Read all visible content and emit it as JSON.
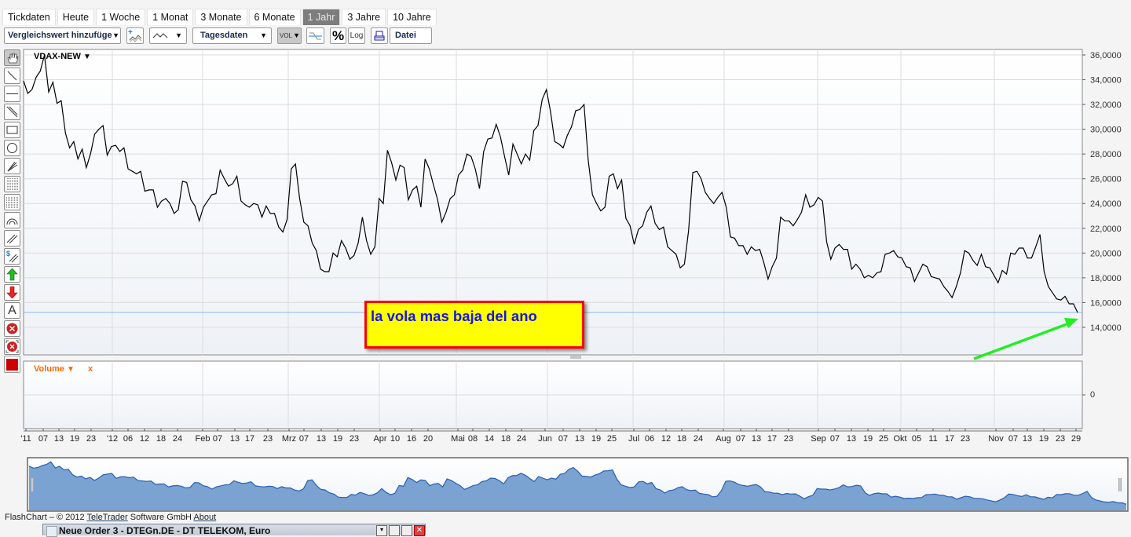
{
  "tabs": [
    {
      "label": "Tickdaten",
      "active": false
    },
    {
      "label": "Heute",
      "active": false
    },
    {
      "label": "1 Woche",
      "active": false
    },
    {
      "label": "1 Monat",
      "active": false
    },
    {
      "label": "3 Monate",
      "active": false
    },
    {
      "label": "6 Monate",
      "active": false
    },
    {
      "label": "1 Jahr",
      "active": true
    },
    {
      "label": "3 Jahre",
      "active": false
    },
    {
      "label": "10 Jahre",
      "active": false
    }
  ],
  "toolbar": {
    "compare_dropdown": "Vergleichswert hinzufüge",
    "add_indicator_icon": "chart-plus-icon",
    "chart_type_icon": "line-chart-icon",
    "interval_dropdown": "Tagesdaten",
    "volume_toggle": "VOL",
    "indicator_icon": "wave-icon",
    "percent_label": "%",
    "log_label": "Log",
    "print_icon": "print-icon",
    "file_label": "Datei"
  },
  "drawing_tools": [
    "hand-icon",
    "line-icon",
    "horizontal-line-icon",
    "parallel-lines-icon",
    "rectangle-icon",
    "circle-icon",
    "fan-icon",
    "vertical-grid-icon",
    "horizontal-grid-icon",
    "arc-icon",
    "channel-icon",
    "dollar-channel-icon",
    "arrow-up-icon",
    "arrow-down-icon",
    "text-icon",
    "delete-icon",
    "delete-all-icon",
    "color-picker-icon"
  ],
  "drawing_text_label": "A",
  "drawing_color": "#cc0000",
  "chart": {
    "instrument": "VDAX-NEW",
    "line_color": "#000000",
    "ref_line_color": "#8fb8e0",
    "annotation": {
      "text": "la vola mas baja del ano",
      "bg": "#ffff00",
      "border": "#ff0000",
      "text_color": "#1515e6"
    },
    "arrow_color": "#22ee22"
  },
  "chart_data": {
    "type": "line",
    "series": [
      {
        "name": "VDAX-NEW",
        "values": [
          33.9,
          32.9,
          33.2,
          34.2,
          34.7,
          36.0,
          33.0,
          33.8,
          32.1,
          32.3,
          29.7,
          28.5,
          29.0,
          27.6,
          28.4,
          26.9,
          28.0,
          29.6,
          30.0,
          30.3,
          27.9,
          28.6,
          28.7,
          28.2,
          28.5,
          26.8,
          26.6,
          26.4,
          26.6,
          25.0,
          25.1,
          25.1,
          23.7,
          24.2,
          24.4,
          24.0,
          23.2,
          23.5,
          25.8,
          25.7,
          24.3,
          23.8,
          22.6,
          23.7,
          24.2,
          24.7,
          24.8,
          26.7,
          26.0,
          25.4,
          25.6,
          26.2,
          24.2,
          23.9,
          23.7,
          24.0,
          23.9,
          22.9,
          23.8,
          23.2,
          23.2,
          22.1,
          21.7,
          22.7,
          26.8,
          27.2,
          24.4,
          22.5,
          22.2,
          20.8,
          20.2,
          18.7,
          18.5,
          18.5,
          20.0,
          19.7,
          21.0,
          20.4,
          19.5,
          19.8,
          20.8,
          22.9,
          21.0,
          19.9,
          20.5,
          24.4,
          24.0,
          28.3,
          27.3,
          25.9,
          27.1,
          26.9,
          24.3,
          25.1,
          25.4,
          23.7,
          27.6,
          26.8,
          25.5,
          24.3,
          22.5,
          23.3,
          24.4,
          24.7,
          26.3,
          26.7,
          28.0,
          27.8,
          26.8,
          25.2,
          28.2,
          29.2,
          29.3,
          30.4,
          29.4,
          27.8,
          26.3,
          28.8,
          28.0,
          27.2,
          28.0,
          27.5,
          29.9,
          30.3,
          32.4,
          33.2,
          31.4,
          29.0,
          28.8,
          28.5,
          29.5,
          30.2,
          31.5,
          31.6,
          32.0,
          27.5,
          24.7,
          24.0,
          23.4,
          23.7,
          26.2,
          26.4,
          25.2,
          25.9,
          22.8,
          22.2,
          20.7,
          21.9,
          22.2,
          23.3,
          23.8,
          22.4,
          21.9,
          22.1,
          20.5,
          20.2,
          19.9,
          18.8,
          19.1,
          21.8,
          26.5,
          26.6,
          26.0,
          24.9,
          24.4,
          24.0,
          24.5,
          24.9,
          23.7,
          21.3,
          21.2,
          20.6,
          20.6,
          19.9,
          20.5,
          20.2,
          20.3,
          19.2,
          17.9,
          18.9,
          19.6,
          22.9,
          22.6,
          22.6,
          22.2,
          22.7,
          23.3,
          24.7,
          23.7,
          23.9,
          24.5,
          24.2,
          20.9,
          19.5,
          20.4,
          20.7,
          20.3,
          20.3,
          18.7,
          19.1,
          18.7,
          18.0,
          18.2,
          18.0,
          18.4,
          18.5,
          19.9,
          20.0,
          20.2,
          19.7,
          19.6,
          18.9,
          18.8,
          17.7,
          18.4,
          19.1,
          18.9,
          18.1,
          18.0,
          17.9,
          17.3,
          16.9,
          16.4,
          17.3,
          18.4,
          20.2,
          20.0,
          19.4,
          19.0,
          19.9,
          18.9,
          18.8,
          18.2,
          17.6,
          18.6,
          18.3,
          20.0,
          19.9,
          20.4,
          20.4,
          19.6,
          19.6,
          20.5,
          21.5,
          18.5,
          17.3,
          16.8,
          16.3,
          16.2,
          16.5,
          15.9,
          15.9,
          15.2
        ]
      }
    ],
    "reference_line": 15.2,
    "ylim": [
      12.8,
      36.4
    ],
    "y_ticks": [
      36,
      34,
      32,
      30,
      28,
      26,
      24,
      22,
      20,
      18,
      16,
      14
    ],
    "y_tick_labels": [
      "36,0000",
      "34,0000",
      "32,0000",
      "30,0000",
      "28,0000",
      "26,0000",
      "24,0000",
      "22,0000",
      "20,0000",
      "18,0000",
      "16,0000",
      "14,0000"
    ],
    "x_tick_labels": [
      "'11",
      "07",
      "13",
      "19",
      "23",
      "'12",
      "06",
      "12",
      "18",
      "24",
      "Feb",
      "07",
      "13",
      "17",
      "23",
      "Mrz",
      "07",
      "13",
      "19",
      "23",
      "Apr",
      "10",
      "16",
      "20",
      "Mai",
      "08",
      "14",
      "18",
      "24",
      "Jun",
      "07",
      "13",
      "19",
      "25",
      "Jul",
      "06",
      "12",
      "18",
      "24",
      "Aug",
      "07",
      "13",
      "17",
      "23",
      "Sep",
      "07",
      "13",
      "19",
      "25",
      "Okt",
      "05",
      "11",
      "17",
      "23",
      "Nov",
      "07",
      "13",
      "19",
      "23",
      "29"
    ],
    "grid": true,
    "volume_panel": {
      "label": "Volume",
      "close_label": "x",
      "y_tick_label": "0",
      "label_color": "#ff6600"
    },
    "navigator_fill": "#7aa3d2"
  },
  "footer": {
    "prefix": "FlashChart – © 2012 ",
    "company_link": "TeleTrader",
    "suffix": " Software GmbH ",
    "about_link": "About"
  },
  "order_window": {
    "title": "Neue Order 3 - DTEGn.DE - DT TELEKOM, Euro"
  }
}
